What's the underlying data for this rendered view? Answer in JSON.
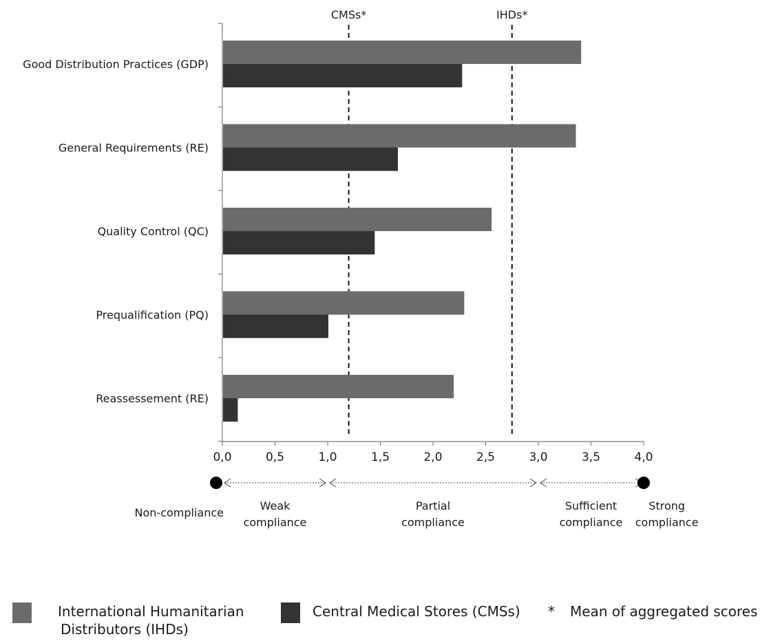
{
  "chart_data": {
    "type": "bar",
    "orientation": "horizontal",
    "categories": [
      "Good Distribution Practices (GDP)",
      "General Requirements (RE)",
      "Quality Control (QC)",
      "Prequalification (PQ)",
      "Reassessement (RE)"
    ],
    "series": [
      {
        "name": "International Humanitarian Distributors (IHDs)",
        "color": "#6b6b6b",
        "values": [
          3.4,
          3.35,
          2.55,
          2.29,
          2.19
        ]
      },
      {
        "name": "Central Medical Stores (CMSs)",
        "color": "#333333",
        "values": [
          2.27,
          1.66,
          1.44,
          1.0,
          0.14
        ]
      }
    ],
    "xlim": [
      0,
      4
    ],
    "x_ticks": [
      "0,0",
      "0,5",
      "1,0",
      "1,5",
      "2,0",
      "2,5",
      "3,0",
      "3,5",
      "4,0"
    ],
    "reference_lines": [
      {
        "label": "CMSs*",
        "value": 1.2
      },
      {
        "label": "IHDs*",
        "value": 2.75
      }
    ],
    "scale_markers": [
      0,
      1,
      3,
      4
    ],
    "compliance_zones": [
      {
        "lines": [
          "Non-compliance"
        ],
        "value": -0.41
      },
      {
        "lines": [
          "Weak",
          "compliance"
        ],
        "value": 0.5
      },
      {
        "lines": [
          "Partial",
          "compliance"
        ],
        "value": 2.0
      },
      {
        "lines": [
          "Sufficient",
          "compliance"
        ],
        "value": 3.5
      },
      {
        "lines": [
          "Strong",
          "compliance"
        ],
        "value": 4.22
      }
    ],
    "grid": false
  },
  "legend": {
    "ihd_lines": [
      "International Humanitarian",
      "Distributors (IHDs)"
    ],
    "cms_label": "Central Medical Stores (CMSs)",
    "star": "*",
    "mean_label": "Mean of aggregated scores"
  }
}
